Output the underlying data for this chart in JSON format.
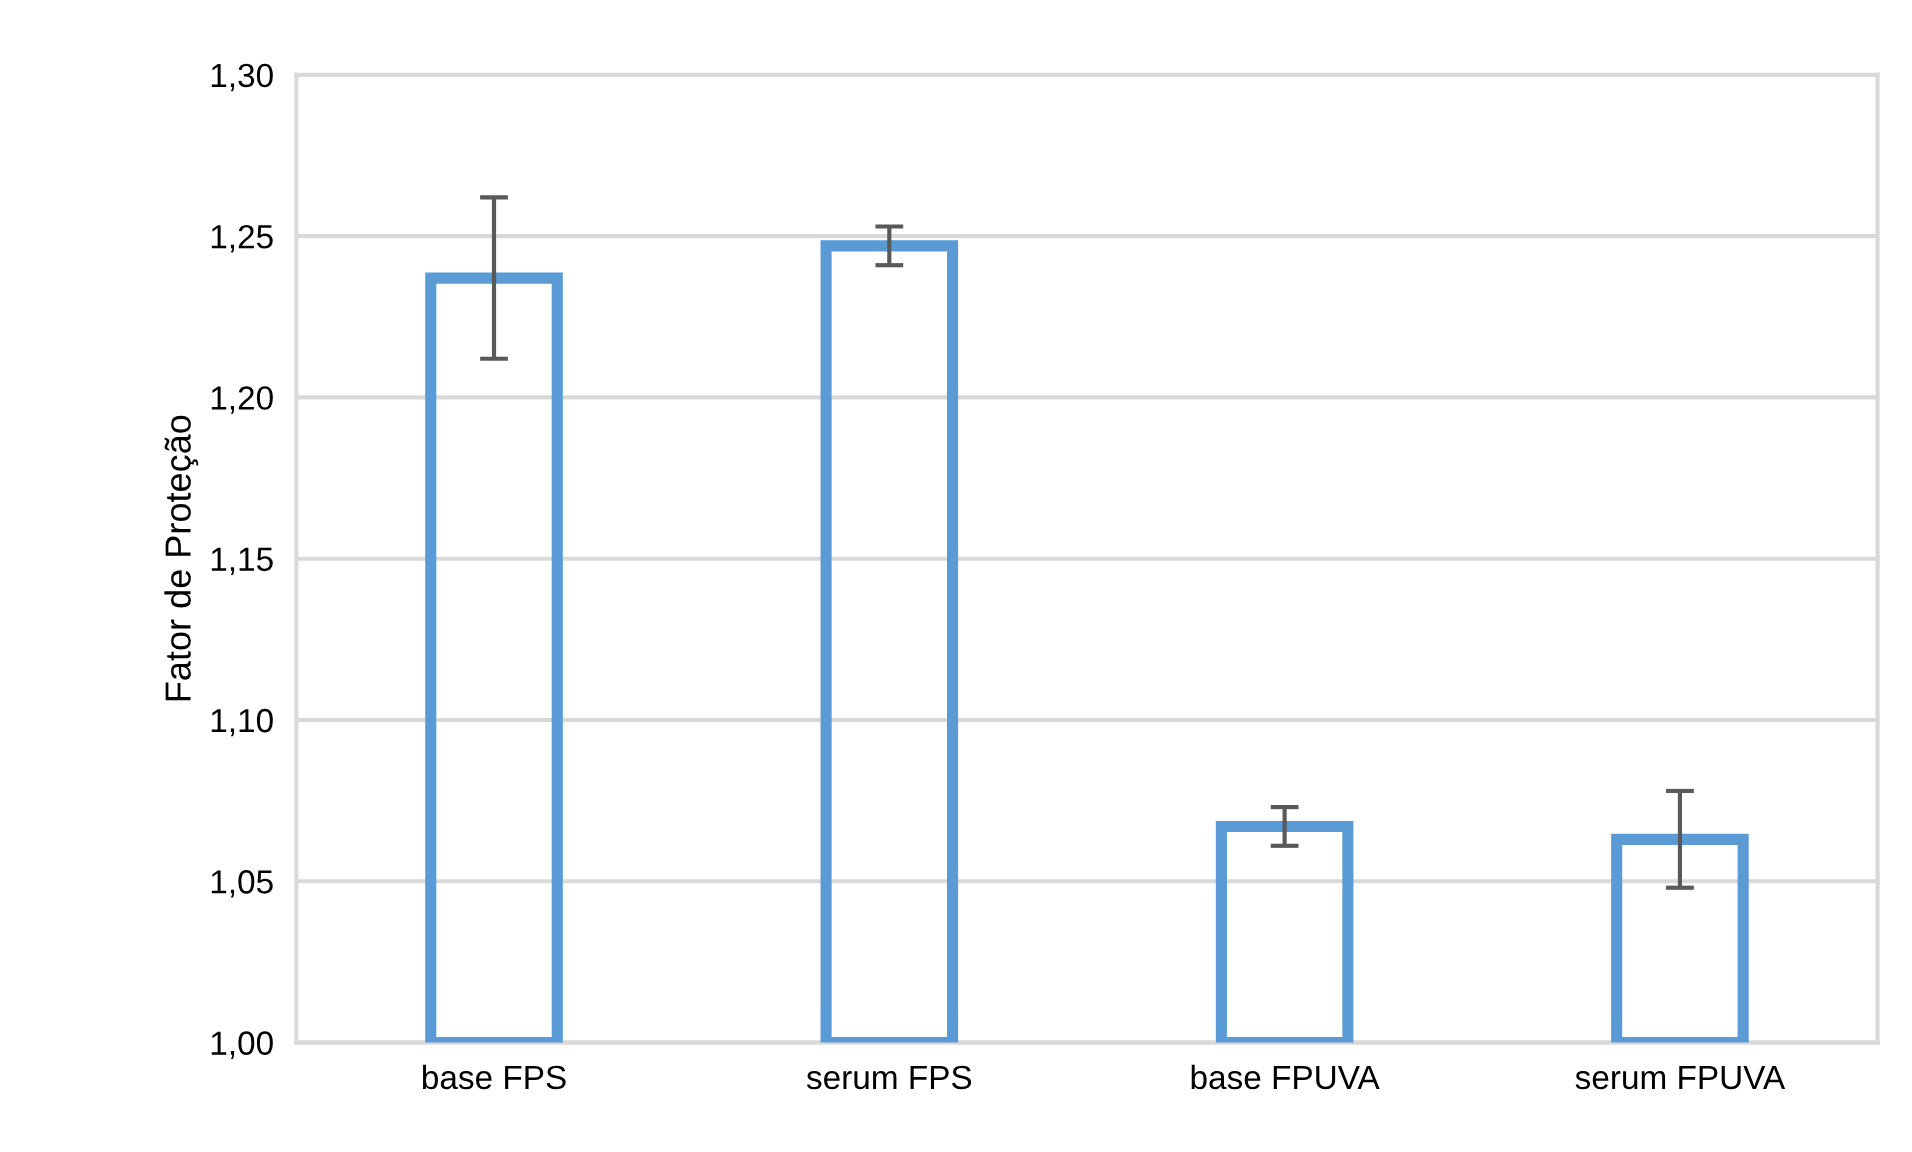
{
  "chart_data": {
    "type": "bar",
    "ylabel": "Fator de Proteção",
    "categories": [
      "base FPS",
      "serum FPS",
      "base FPUVA",
      "serum FPUVA"
    ],
    "series": [
      {
        "color": "#5b9bd5",
        "values": [
          1.237,
          1.247,
          1.067,
          1.063
        ],
        "errors": [
          0.025,
          0.006,
          0.006,
          0.015
        ]
      }
    ],
    "ylim": [
      1.0,
      1.3
    ],
    "yticks": [
      {
        "value": 1.0,
        "label": "1,00"
      },
      {
        "value": 1.05,
        "label": "1,05"
      },
      {
        "value": 1.1,
        "label": "1,10"
      },
      {
        "value": 1.15,
        "label": "1,15"
      },
      {
        "value": 1.2,
        "label": "1,20"
      },
      {
        "value": 1.25,
        "label": "1,25"
      },
      {
        "value": 1.3,
        "label": "1,30"
      }
    ],
    "grid": "y",
    "legend": false
  }
}
